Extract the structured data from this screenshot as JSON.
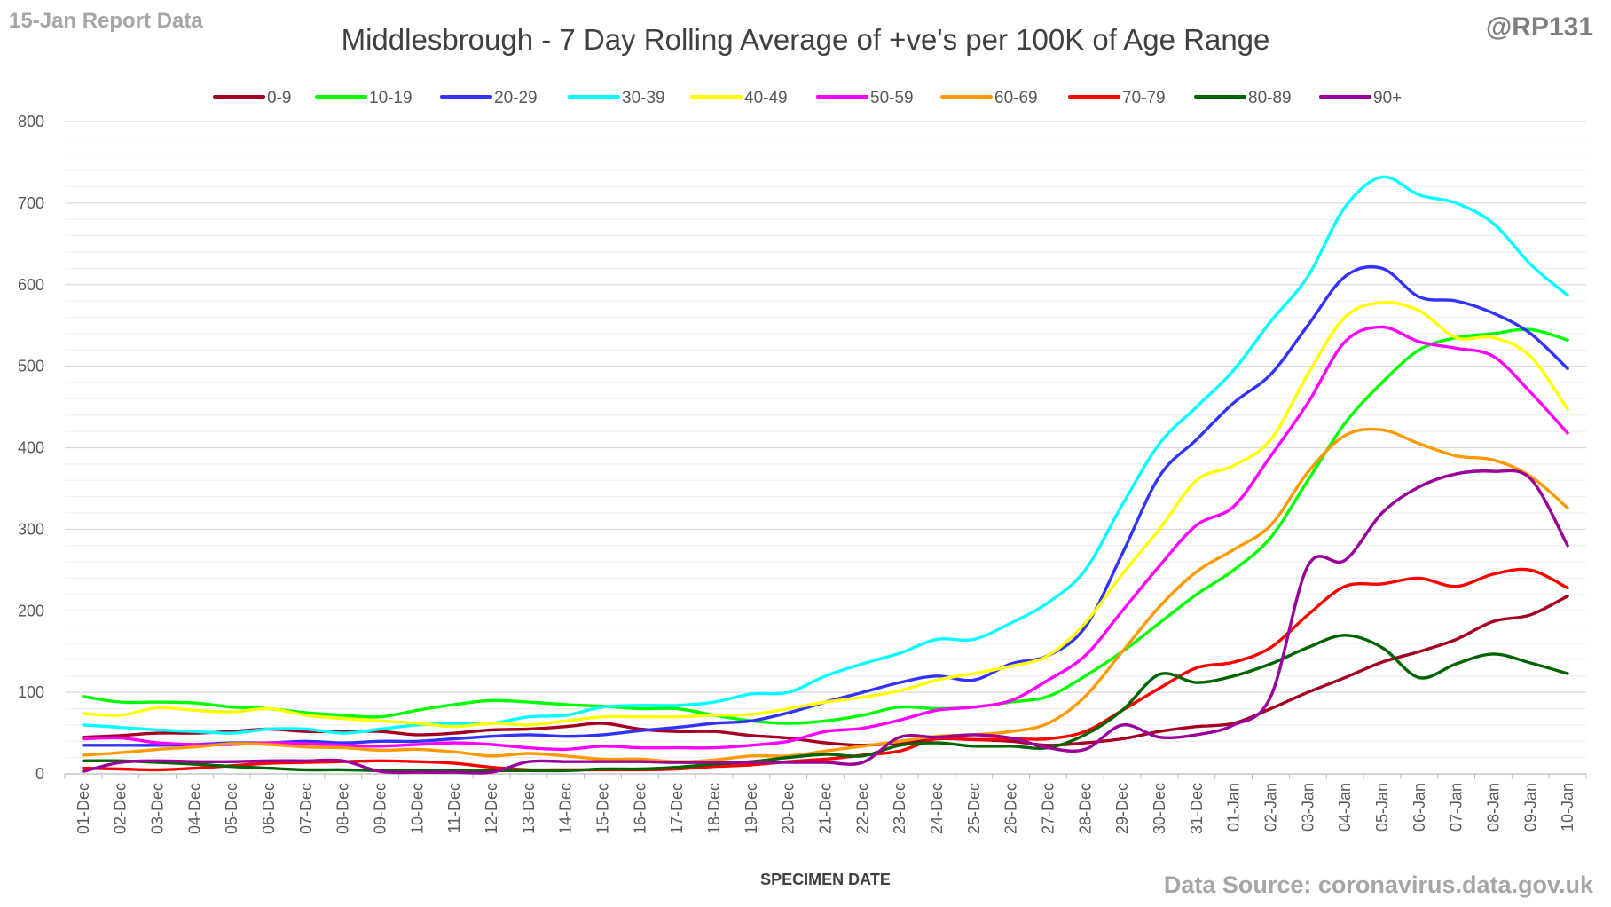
{
  "header": {
    "report_label": "15-Jan Report Data",
    "handle": "@RP131",
    "source": "Data Source: coronavirus.data.gov.uk"
  },
  "chart_data": {
    "type": "line",
    "title": "Middlesbrough - 7 Day Rolling Average of +ve's per 100K of Age Range",
    "xlabel": "SPECIMEN DATE",
    "ylabel": "",
    "ylim": [
      0,
      800
    ],
    "yticks": [
      0,
      100,
      200,
      300,
      400,
      500,
      600,
      700,
      800
    ],
    "grid": true,
    "legend_position": "top",
    "categories": [
      "01-Dec",
      "02-Dec",
      "03-Dec",
      "04-Dec",
      "05-Dec",
      "06-Dec",
      "07-Dec",
      "08-Dec",
      "09-Dec",
      "10-Dec",
      "11-Dec",
      "12-Dec",
      "13-Dec",
      "14-Dec",
      "15-Dec",
      "16-Dec",
      "17-Dec",
      "18-Dec",
      "19-Dec",
      "20-Dec",
      "21-Dec",
      "22-Dec",
      "23-Dec",
      "24-Dec",
      "25-Dec",
      "26-Dec",
      "27-Dec",
      "28-Dec",
      "29-Dec",
      "30-Dec",
      "31-Dec",
      "01-Jan",
      "02-Jan",
      "03-Jan",
      "04-Jan",
      "05-Jan",
      "06-Jan",
      "07-Jan",
      "08-Jan",
      "09-Jan",
      "10-Jan"
    ],
    "series": [
      {
        "name": "0-9",
        "color": "#a50021",
        "values": [
          45,
          47,
          50,
          50,
          52,
          55,
          52,
          52,
          52,
          48,
          50,
          54,
          55,
          58,
          62,
          55,
          52,
          52,
          47,
          44,
          38,
          35,
          38,
          43,
          42,
          40,
          35,
          38,
          43,
          52,
          58,
          62,
          80,
          100,
          118,
          137,
          150,
          165,
          187,
          195,
          218
        ]
      },
      {
        "name": "10-19",
        "color": "#00ff00",
        "values": [
          95,
          88,
          88,
          87,
          82,
          80,
          75,
          72,
          70,
          78,
          85,
          90,
          88,
          85,
          83,
          80,
          80,
          72,
          65,
          62,
          65,
          72,
          82,
          80,
          82,
          88,
          95,
          120,
          150,
          185,
          220,
          250,
          290,
          360,
          430,
          480,
          520,
          535,
          540,
          545,
          532
        ]
      },
      {
        "name": "20-29",
        "color": "#3333ff",
        "values": [
          35,
          35,
          35,
          36,
          38,
          38,
          40,
          38,
          40,
          40,
          43,
          46,
          48,
          46,
          48,
          53,
          57,
          62,
          65,
          75,
          88,
          100,
          112,
          120,
          115,
          135,
          145,
          180,
          270,
          365,
          410,
          455,
          490,
          550,
          610,
          620,
          585,
          580,
          565,
          540,
          497
        ]
      },
      {
        "name": "30-39",
        "color": "#00ffff",
        "values": [
          60,
          57,
          54,
          52,
          50,
          55,
          55,
          50,
          55,
          60,
          62,
          62,
          70,
          72,
          82,
          84,
          84,
          88,
          98,
          100,
          120,
          135,
          148,
          165,
          165,
          185,
          210,
          250,
          330,
          405,
          450,
          495,
          555,
          610,
          695,
          732,
          710,
          700,
          675,
          625,
          587
        ]
      },
      {
        "name": "40-49",
        "color": "#ffff00",
        "values": [
          74,
          72,
          81,
          78,
          76,
          80,
          72,
          68,
          65,
          62,
          58,
          62,
          60,
          65,
          70,
          70,
          70,
          72,
          73,
          80,
          88,
          94,
          102,
          115,
          123,
          132,
          145,
          185,
          245,
          300,
          360,
          378,
          410,
          490,
          560,
          578,
          568,
          535,
          535,
          512,
          447
        ]
      },
      {
        "name": "50-59",
        "color": "#ff00ff",
        "values": [
          43,
          44,
          38,
          36,
          36,
          38,
          37,
          35,
          34,
          36,
          38,
          36,
          32,
          30,
          34,
          32,
          32,
          32,
          35,
          40,
          52,
          56,
          66,
          78,
          82,
          90,
          115,
          145,
          200,
          255,
          305,
          328,
          390,
          455,
          530,
          548,
          530,
          522,
          512,
          468,
          418
        ]
      },
      {
        "name": "60-69",
        "color": "#ff9900",
        "values": [
          23,
          26,
          30,
          33,
          37,
          36,
          33,
          32,
          29,
          30,
          27,
          22,
          25,
          22,
          18,
          18,
          15,
          17,
          22,
          22,
          28,
          34,
          40,
          46,
          48,
          52,
          62,
          95,
          150,
          205,
          248,
          275,
          305,
          370,
          415,
          422,
          405,
          390,
          385,
          365,
          326
        ]
      },
      {
        "name": "70-79",
        "color": "#ff0000",
        "values": [
          7,
          6,
          5,
          7,
          10,
          13,
          14,
          15,
          16,
          15,
          13,
          8,
          5,
          5,
          5,
          5,
          6,
          9,
          11,
          15,
          18,
          23,
          28,
          43,
          42,
          43,
          43,
          52,
          78,
          105,
          130,
          137,
          155,
          195,
          230,
          233,
          240,
          230,
          245,
          250,
          228
        ]
      },
      {
        "name": "80-89",
        "color": "#006400",
        "values": [
          16,
          16,
          14,
          12,
          9,
          7,
          5,
          5,
          4,
          4,
          4,
          4,
          4,
          4,
          6,
          6,
          8,
          12,
          15,
          20,
          24,
          22,
          35,
          38,
          34,
          34,
          32,
          48,
          78,
          122,
          112,
          120,
          135,
          155,
          170,
          155,
          118,
          135,
          147,
          136,
          123
        ]
      },
      {
        "name": "90+",
        "color": "#990099",
        "values": [
          3,
          14,
          16,
          15,
          15,
          16,
          16,
          16,
          3,
          2,
          2,
          2,
          15,
          15,
          15,
          15,
          14,
          14,
          14,
          14,
          14,
          14,
          45,
          45,
          48,
          44,
          32,
          30,
          60,
          45,
          48,
          60,
          95,
          255,
          262,
          320,
          352,
          368,
          371,
          362,
          280
        ]
      }
    ]
  }
}
